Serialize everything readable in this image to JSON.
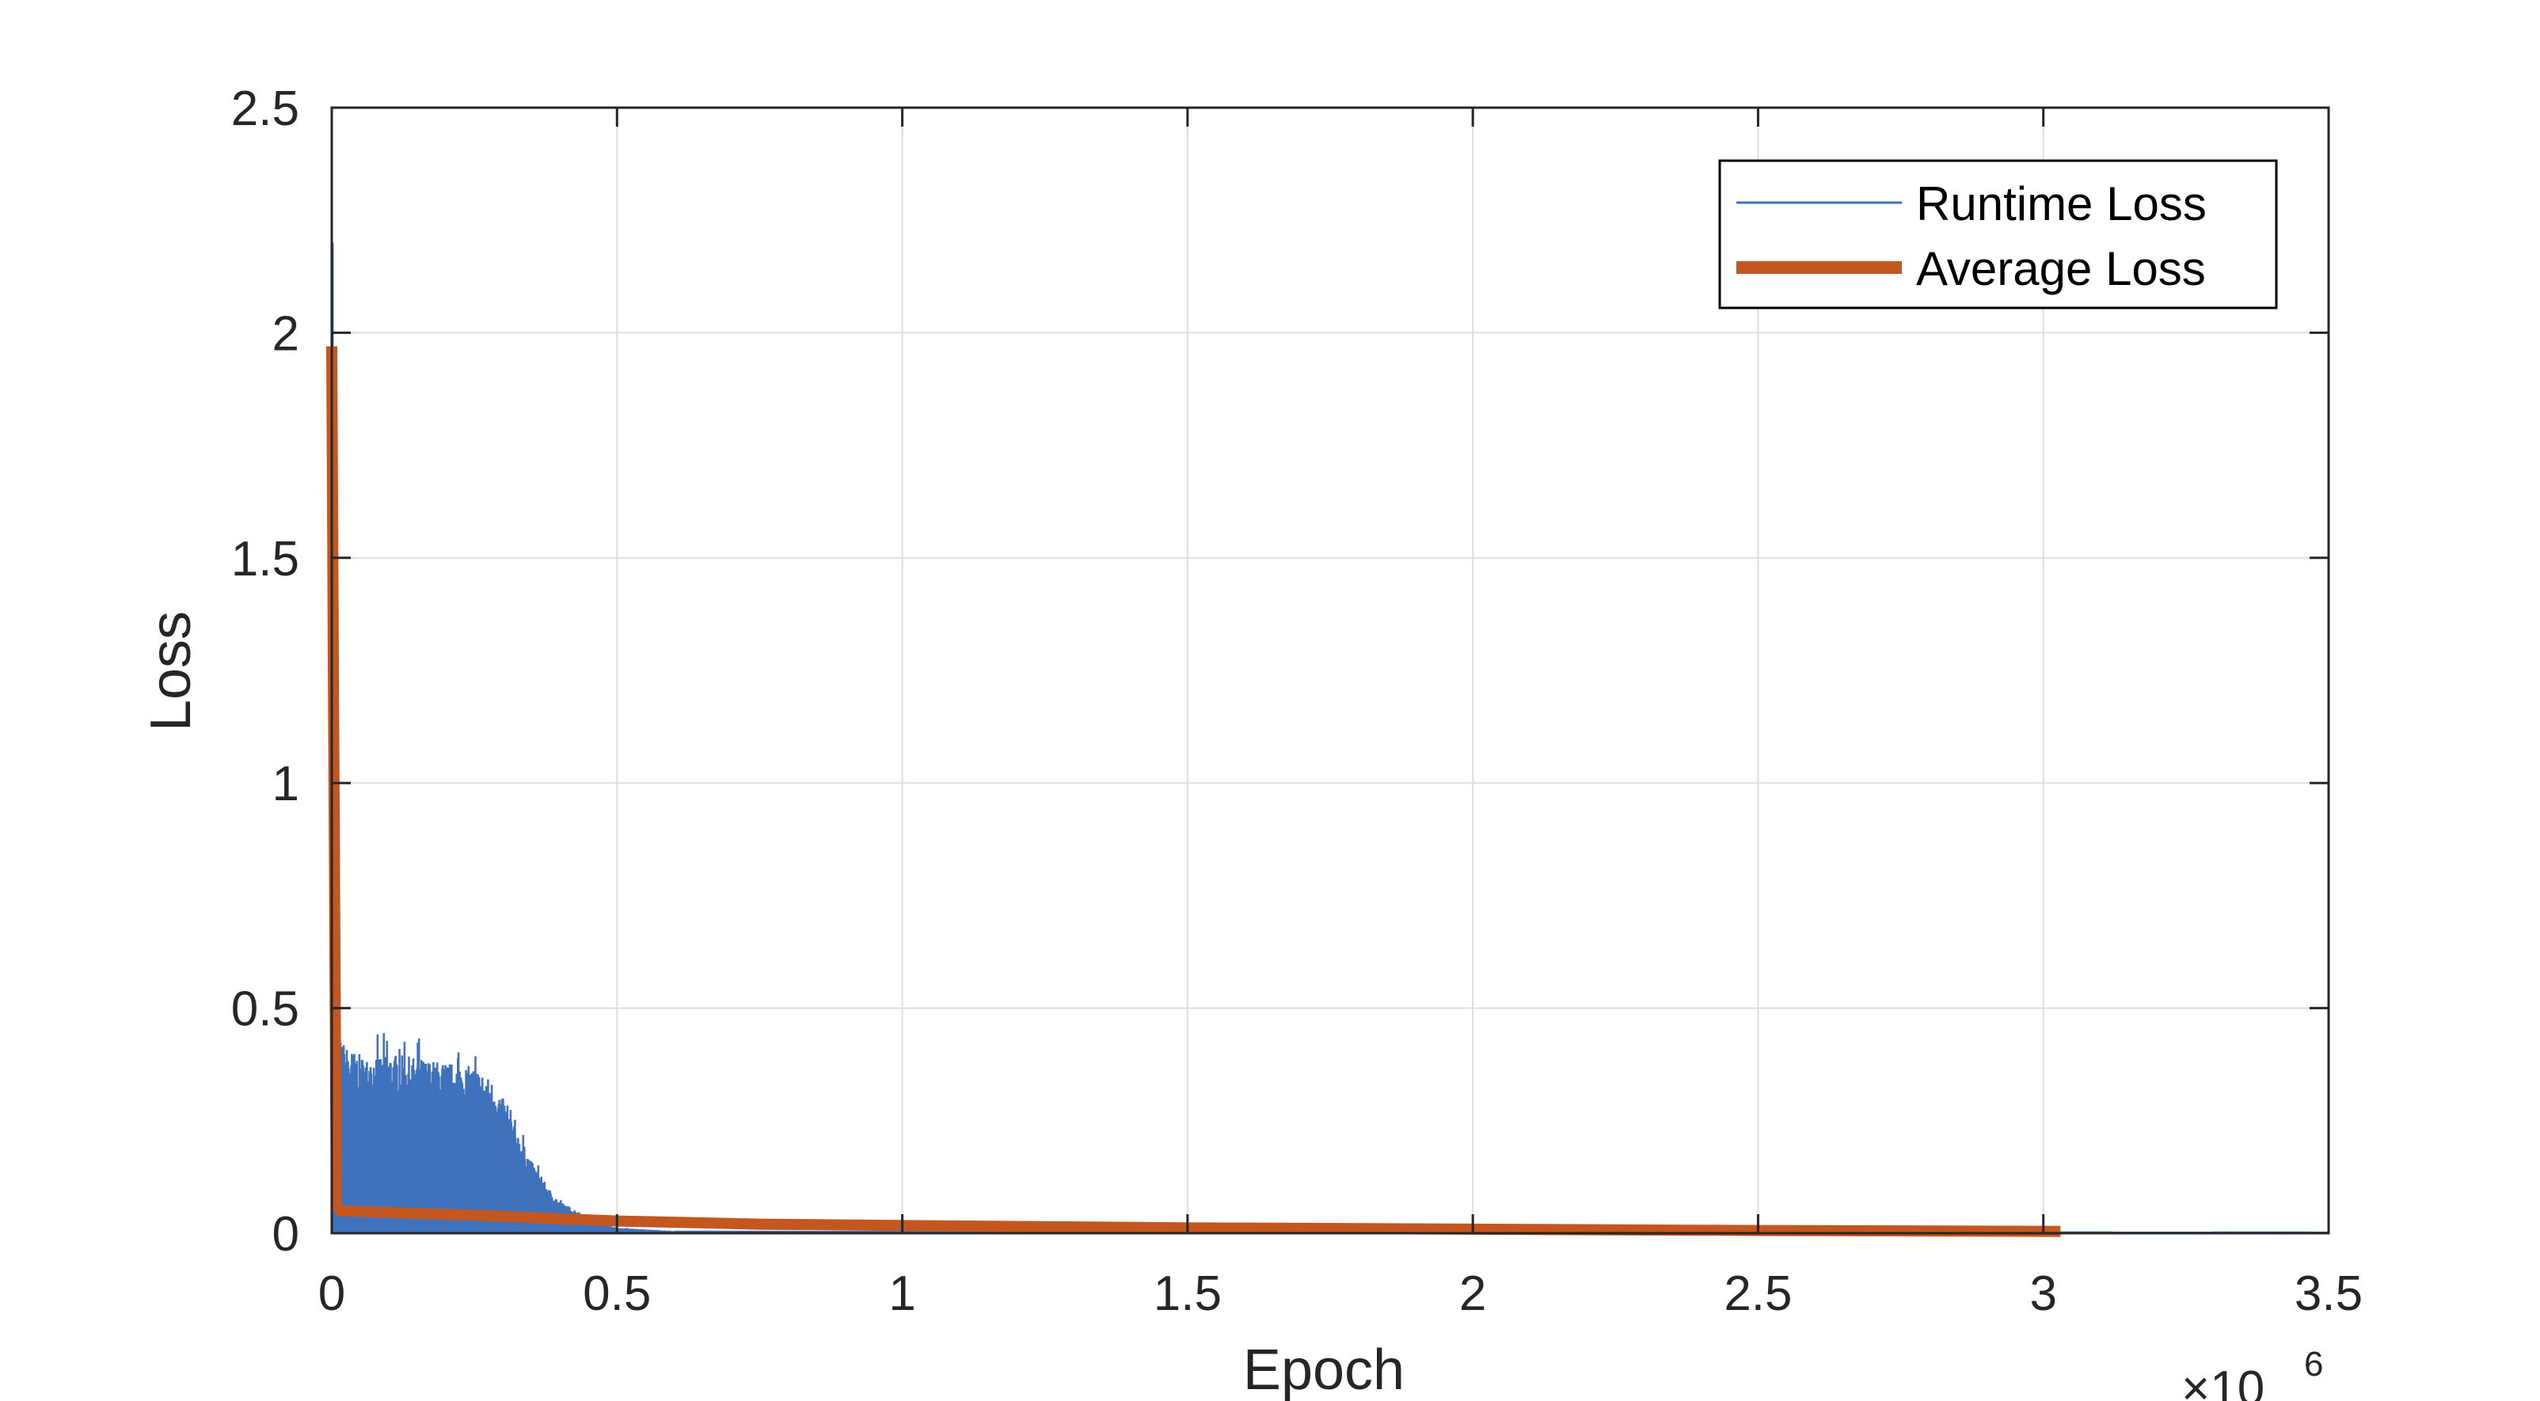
{
  "chart_data": {
    "type": "line",
    "xlabel": "Epoch",
    "ylabel": "Loss",
    "xlim": [
      0,
      3500000
    ],
    "ylim": [
      0,
      2.5
    ],
    "x_ticks": [
      0,
      500000,
      1000000,
      1500000,
      2000000,
      2500000,
      3000000,
      3500000
    ],
    "x_tick_labels": [
      "0",
      "0.5",
      "1",
      "1.5",
      "2",
      "2.5",
      "3",
      "3.5"
    ],
    "y_ticks": [
      0,
      0.5,
      1,
      1.5,
      2,
      2.5
    ],
    "y_tick_labels": [
      "0",
      "0.5",
      "1",
      "1.5",
      "2",
      "2.5"
    ],
    "x_exponent": {
      "base": "×10",
      "power": "6"
    },
    "grid": true,
    "legend_position": "top-right",
    "colors": {
      "runtime": "#3e72bd",
      "average": "#c4561f",
      "grid": "#dfdfdf",
      "axis": "#262626"
    },
    "series": [
      {
        "name": "Runtime Loss",
        "style": "thin-filled-noise",
        "initial_spike": 2.2,
        "envelope": {
          "x": [
            0,
            10000,
            30000,
            60000,
            100000,
            150000,
            200000,
            250000,
            280000,
            300000,
            320000,
            350000,
            380000,
            400000,
            430000,
            460000,
            480000,
            500000,
            600000,
            3500000
          ],
          "y": [
            0.45,
            0.44,
            0.41,
            0.39,
            0.4,
            0.39,
            0.38,
            0.37,
            0.34,
            0.3,
            0.24,
            0.16,
            0.1,
            0.07,
            0.05,
            0.03,
            0.02,
            0.012,
            0.005,
            0.002
          ]
        }
      },
      {
        "name": "Average Loss",
        "x": [
          0,
          3000,
          8000,
          15000,
          100000,
          250000,
          400000,
          500000,
          750000,
          1000000,
          1500000,
          2000000,
          2500000,
          3030000
        ],
        "y": [
          1.97,
          1.2,
          0.06,
          0.05,
          0.046,
          0.04,
          0.032,
          0.027,
          0.02,
          0.017,
          0.012,
          0.009,
          0.006,
          0.004
        ]
      }
    ]
  }
}
